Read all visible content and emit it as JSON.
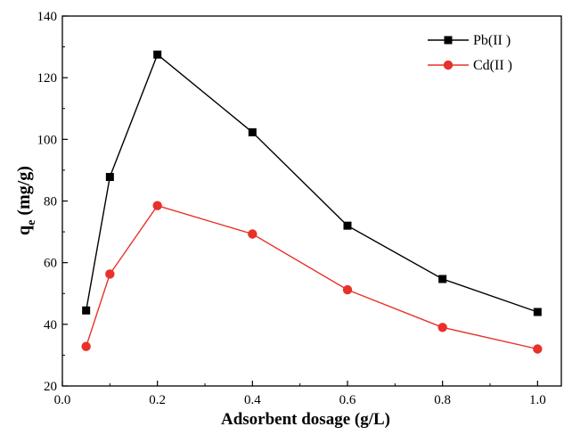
{
  "chart_data": {
    "type": "line",
    "title": "",
    "xlabel": "Adsorbent dosage (g/L)",
    "ylabel_main": "q",
    "ylabel_sub": "e",
    "ylabel_unit": " (mg/g)",
    "xlim": [
      0.0,
      1.05
    ],
    "ylim": [
      20,
      140
    ],
    "xticks": [
      0.0,
      0.2,
      0.4,
      0.6,
      0.8,
      1.0
    ],
    "xtick_labels": [
      "0.0",
      "0.2",
      "0.4",
      "0.6",
      "0.8",
      "1.0"
    ],
    "yticks": [
      20,
      40,
      60,
      80,
      100,
      120,
      140
    ],
    "ytick_labels": [
      "20",
      "40",
      "60",
      "80",
      "100",
      "120",
      "140"
    ],
    "grid": false,
    "legend_position": "top-right",
    "x": [
      0.05,
      0.1,
      0.2,
      0.4,
      0.6,
      0.8,
      1.0
    ],
    "series": [
      {
        "name": "Pb(II )",
        "color": "#000000",
        "marker": "square",
        "values": [
          44.5,
          87.8,
          127.5,
          102.3,
          72.0,
          54.7,
          44.0
        ]
      },
      {
        "name": "Cd(II )",
        "color": "#e8312a",
        "marker": "circle",
        "values": [
          32.8,
          56.3,
          78.5,
          69.3,
          51.2,
          39.0,
          32.0
        ]
      }
    ]
  }
}
